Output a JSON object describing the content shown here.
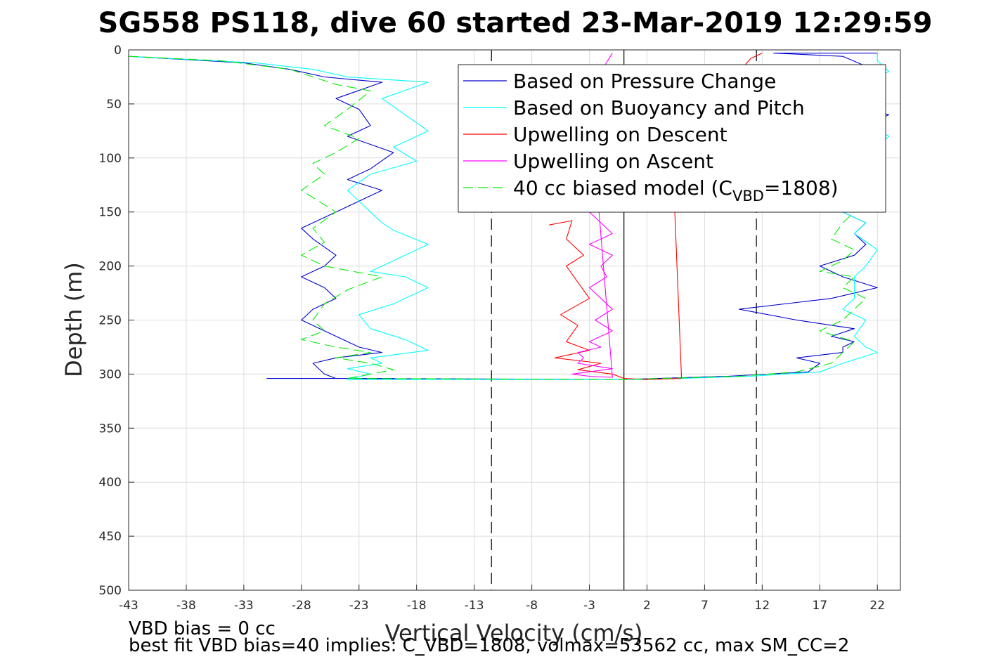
{
  "chart_data": {
    "type": "line",
    "title": "SG558 PS118, dive 60 started 23-Mar-2019 12:29:59",
    "xlabel": "Vertical Velocity (cm/s)",
    "ylabel": "Depth (m)",
    "xlim": [
      -43,
      24
    ],
    "ylim": [
      0,
      500
    ],
    "y_reversed": true,
    "grid": true,
    "legend_position": "top-right",
    "xticks": [
      -43,
      -38,
      -33,
      -28,
      -23,
      -18,
      -13,
      -8,
      -3,
      2,
      7,
      12,
      17,
      22
    ],
    "yticks": [
      0,
      50,
      100,
      150,
      200,
      250,
      300,
      350,
      400,
      450,
      500
    ],
    "reference_lines": [
      {
        "x": -11.5,
        "style": "dashed",
        "color": "#000000"
      },
      {
        "x": 0,
        "style": "solid",
        "color": "#000000"
      },
      {
        "x": 11.5,
        "style": "dashed",
        "color": "#000000"
      }
    ],
    "legend_label_prefix": "40 cc biased model (C",
    "legend_label_sub": "VBD",
    "legend_label_suffix": "=1808)",
    "series": [
      {
        "name": "Based on Pressure Change",
        "color": "#0000cc",
        "dash": "none",
        "x": [
          -43,
          -33,
          -29,
          -26,
          -21,
          -25,
          -23,
          -22,
          -24,
          -20,
          -22,
          -24,
          -21,
          -23,
          -25,
          -28,
          -27,
          -25,
          -26,
          -28,
          -26,
          -25,
          -27,
          -28,
          -26,
          -24,
          -23,
          -21,
          -25,
          -27,
          -26,
          -25,
          -24,
          -22,
          -24,
          -20,
          -24,
          -31,
          -26,
          -28,
          -24,
          0,
          9,
          16,
          17,
          15,
          19,
          19,
          20,
          18,
          20,
          15,
          10,
          18,
          22,
          19,
          17,
          20,
          21,
          20,
          21,
          19,
          20,
          18,
          21,
          19,
          23,
          18,
          20,
          21,
          19,
          13,
          22
        ],
        "y": [
          6,
          12,
          18,
          25,
          30,
          45,
          55,
          70,
          80,
          95,
          110,
          120,
          130,
          140,
          150,
          165,
          175,
          190,
          200,
          210,
          220,
          230,
          240,
          250,
          260,
          270,
          275,
          280,
          285,
          290,
          300,
          304,
          304,
          304,
          304,
          304,
          304,
          304,
          304,
          304,
          304,
          305,
          302,
          298,
          290,
          285,
          280,
          275,
          270,
          265,
          258,
          250,
          240,
          230,
          220,
          210,
          200,
          190,
          180,
          170,
          160,
          150,
          140,
          120,
          100,
          80,
          60,
          45,
          30,
          15,
          6,
          3,
          3
        ]
      },
      {
        "name": "Based on Buoyancy and Pitch",
        "color": "#00ffff",
        "dash": "none",
        "x": [
          -43,
          -32,
          -27,
          -24,
          -17,
          -21,
          -19,
          -17,
          -20,
          -18,
          -22,
          -24,
          -22,
          -21,
          -20,
          -17,
          -19,
          -21,
          -22,
          -19,
          -17,
          -20,
          -23,
          -22,
          -19,
          -17,
          -22,
          -21,
          -24,
          -22,
          -24,
          2,
          11,
          17,
          19,
          22,
          21,
          20,
          21,
          19,
          20,
          20,
          21,
          22,
          20,
          21,
          19,
          22,
          21,
          23,
          20,
          19,
          23,
          22,
          22
        ],
        "y": [
          6,
          12,
          18,
          25,
          30,
          45,
          60,
          75,
          90,
          103,
          115,
          130,
          150,
          160,
          167,
          180,
          190,
          200,
          205,
          210,
          220,
          235,
          245,
          258,
          268,
          278,
          285,
          290,
          295,
          300,
          305,
          305,
          302,
          298,
          290,
          280,
          275,
          265,
          250,
          240,
          230,
          210,
          200,
          185,
          170,
          160,
          150,
          120,
          100,
          80,
          60,
          40,
          20,
          10,
          3
        ]
      },
      {
        "name": "Upwelling on Descent",
        "color": "#ff0000",
        "dash": "none",
        "x": [
          -6.5,
          -4.5,
          -5,
          -3.5,
          -5,
          -4,
          -3,
          -5.5,
          -4,
          -5,
          -3,
          -6,
          -2,
          -4,
          -1,
          0,
          2,
          5,
          4,
          10,
          11,
          12
        ],
        "y": [
          162,
          158,
          175,
          190,
          200,
          215,
          230,
          245,
          255,
          270,
          278,
          285,
          290,
          296,
          300,
          304,
          305,
          304,
          40,
          20,
          8,
          3
        ]
      },
      {
        "name": "Upwelling on Ascent",
        "color": "#ff00ff",
        "dash": "none",
        "x": [
          -3,
          -2,
          -1,
          -3,
          -1,
          -2,
          -1.5,
          -3,
          -2,
          -1,
          -2.5,
          -1,
          -3,
          -2,
          -4,
          -3.5,
          -4,
          -1,
          -4.5,
          -3,
          -1,
          -3,
          -2,
          -1
        ],
        "y": [
          150,
          160,
          170,
          180,
          190,
          200,
          210,
          220,
          230,
          240,
          250,
          260,
          270,
          275,
          280,
          285,
          290,
          295,
          300,
          302,
          303,
          40,
          20,
          3
        ]
      },
      {
        "name": "40 cc biased model (CVBD=1808)",
        "color": "#00ee00",
        "dash": "dashed",
        "x": [
          -43,
          -35,
          -32,
          -29,
          -27,
          -25,
          -22,
          -24,
          -26,
          -23,
          -25,
          -27,
          -26,
          -28,
          -25,
          -27,
          -26,
          -28,
          -26,
          -21,
          -24,
          -26,
          -27,
          -26,
          -28,
          -25,
          -22,
          -25,
          -22,
          -20,
          -22,
          -24,
          0,
          10,
          15,
          18,
          19,
          20,
          17,
          19,
          20,
          21,
          19,
          20,
          17,
          19,
          20,
          18,
          19,
          20,
          19,
          22,
          20,
          21
        ],
        "y": [
          6,
          10,
          14,
          18,
          25,
          32,
          38,
          55,
          70,
          82,
          95,
          105,
          115,
          130,
          150,
          165,
          178,
          190,
          200,
          210,
          222,
          235,
          250,
          260,
          268,
          275,
          280,
          285,
          290,
          296,
          300,
          304,
          305,
          302,
          298,
          290,
          280,
          270,
          260,
          250,
          240,
          230,
          220,
          210,
          205,
          195,
          185,
          175,
          160,
          150,
          120,
          90,
          60,
          20
        ]
      }
    ]
  },
  "footer": {
    "line1": "VBD bias = 0 cc",
    "line2": "best fit VBD bias=40 implies: C_VBD=1808, volmax=53562 cc, max SM_CC=2"
  }
}
